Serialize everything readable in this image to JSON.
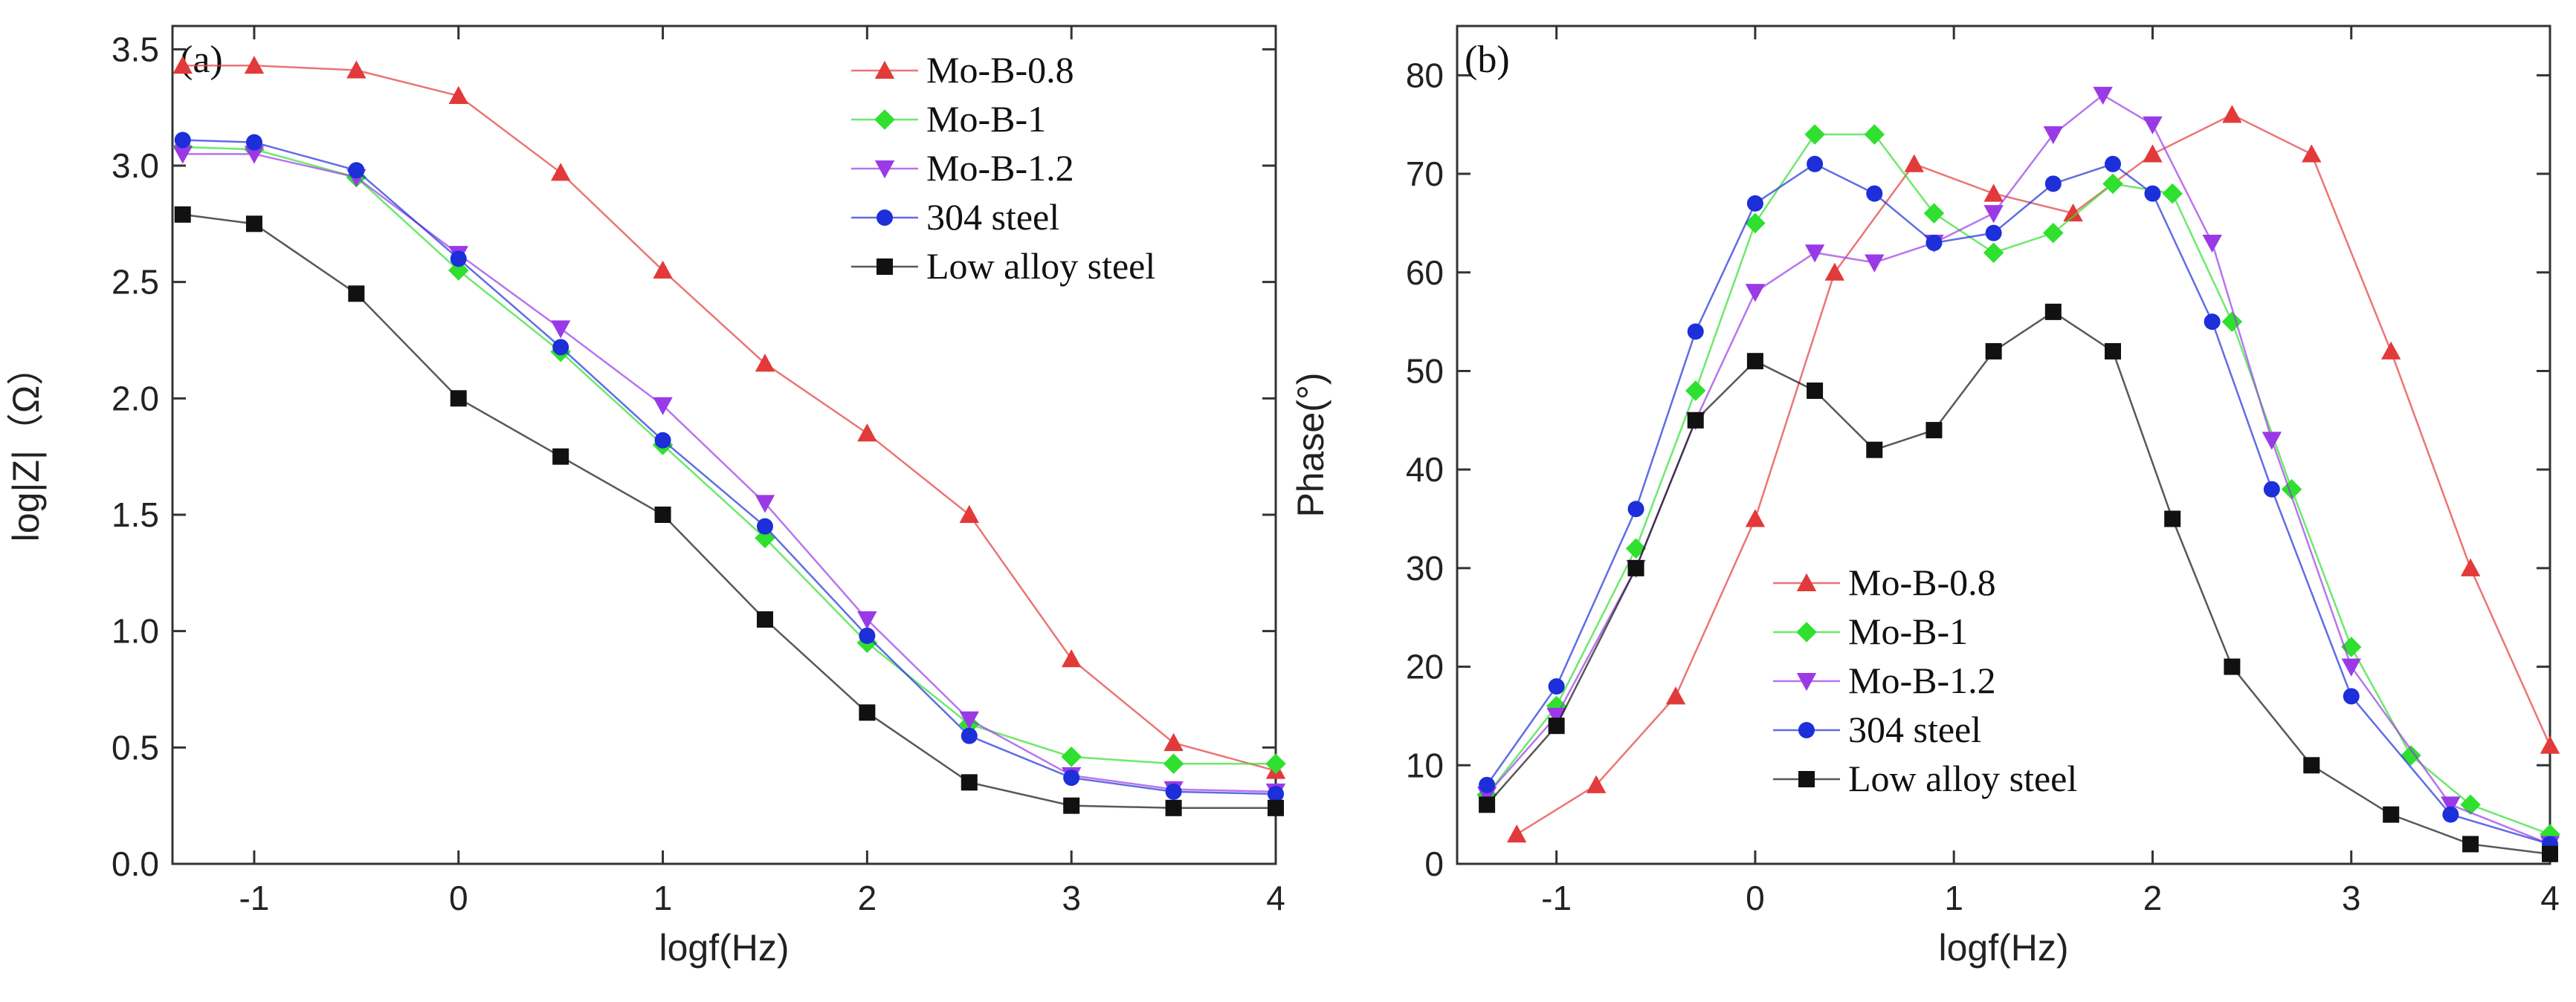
{
  "chart_data": [
    {
      "type": "line",
      "panel_label": "(a)",
      "xlabel": "logf(Hz)",
      "ylabel": "log|Z|（Ω）",
      "xlim": [
        -1.4,
        4.0
      ],
      "ylim": [
        0.0,
        3.6
      ],
      "xticks": [
        -1,
        0,
        1,
        2,
        3,
        4
      ],
      "yticks": [
        0.0,
        0.5,
        1.0,
        1.5,
        2.0,
        2.5,
        3.0,
        3.5
      ],
      "legend_position": "top-right",
      "series": [
        {
          "name": "Mo-B-0.8",
          "color": "#e23a3a",
          "marker": "triangle-up",
          "x": [
            -1.35,
            -1.0,
            -0.5,
            0,
            0.5,
            1.0,
            1.5,
            2.0,
            2.5,
            3.0,
            3.5,
            4.0
          ],
          "y": [
            3.43,
            3.43,
            3.41,
            3.3,
            2.97,
            2.55,
            2.15,
            1.85,
            1.5,
            0.88,
            0.52,
            0.4
          ]
        },
        {
          "name": "Mo-B-1",
          "color": "#2fe02f",
          "marker": "diamond",
          "x": [
            -1.35,
            -1.0,
            -0.5,
            0,
            0.5,
            1.0,
            1.5,
            2.0,
            2.5,
            3.0,
            3.5,
            4.0
          ],
          "y": [
            3.08,
            3.07,
            2.95,
            2.55,
            2.2,
            1.8,
            1.4,
            0.95,
            0.6,
            0.46,
            0.43,
            0.43
          ]
        },
        {
          "name": "Mo-B-1.2",
          "color": "#9a3ae6",
          "marker": "triangle-down",
          "x": [
            -1.35,
            -1.0,
            -0.5,
            0,
            0.5,
            1.0,
            1.5,
            2.0,
            2.5,
            3.0,
            3.5,
            4.0
          ],
          "y": [
            3.05,
            3.05,
            2.95,
            2.62,
            2.3,
            1.97,
            1.55,
            1.05,
            0.62,
            0.38,
            0.32,
            0.31
          ]
        },
        {
          "name": "304 steel",
          "color": "#1c2fd8",
          "marker": "circle",
          "x": [
            -1.35,
            -1.0,
            -0.5,
            0,
            0.5,
            1.0,
            1.5,
            2.0,
            2.5,
            3.0,
            3.5,
            4.0
          ],
          "y": [
            3.11,
            3.1,
            2.98,
            2.6,
            2.22,
            1.82,
            1.45,
            0.98,
            0.55,
            0.37,
            0.31,
            0.3
          ]
        },
        {
          "name": "Low alloy steel",
          "color": "#111111",
          "marker": "square",
          "x": [
            -1.35,
            -1.0,
            -0.5,
            0,
            0.5,
            1.0,
            1.5,
            2.0,
            2.5,
            3.0,
            3.5,
            4.0
          ],
          "y": [
            2.79,
            2.75,
            2.45,
            2.0,
            1.75,
            1.5,
            1.05,
            0.65,
            0.35,
            0.25,
            0.24,
            0.24
          ]
        }
      ]
    },
    {
      "type": "line",
      "panel_label": "(b)",
      "xlabel": "logf(Hz)",
      "ylabel": "Phase(°)",
      "xlim": [
        -1.5,
        4.0
      ],
      "ylim": [
        0,
        85
      ],
      "xticks": [
        -1,
        0,
        1,
        2,
        3,
        4
      ],
      "yticks": [
        0,
        10,
        20,
        30,
        40,
        50,
        60,
        70,
        80
      ],
      "legend_position": "bottom-center",
      "series": [
        {
          "name": "Mo-B-0.8",
          "color": "#e23a3a",
          "marker": "triangle-up",
          "x": [
            -1.2,
            -0.8,
            -0.4,
            0,
            0.4,
            0.8,
            1.2,
            1.6,
            2.0,
            2.4,
            2.8,
            3.2,
            3.6,
            4.0
          ],
          "y": [
            3,
            8,
            17,
            35,
            60,
            71,
            68,
            66,
            72,
            76,
            72,
            52,
            30,
            12
          ]
        },
        {
          "name": "Mo-B-1",
          "color": "#2fe02f",
          "marker": "diamond",
          "x": [
            -1.35,
            -1.0,
            -0.6,
            -0.3,
            0,
            0.3,
            0.6,
            0.9,
            1.2,
            1.5,
            1.8,
            2.1,
            2.4,
            2.7,
            3.0,
            3.3,
            3.6,
            4.0
          ],
          "y": [
            7,
            16,
            32,
            48,
            65,
            74,
            74,
            66,
            62,
            64,
            69,
            68,
            55,
            38,
            22,
            11,
            6,
            3
          ]
        },
        {
          "name": "Mo-B-1.2",
          "color": "#9a3ae6",
          "marker": "triangle-down",
          "x": [
            -1.35,
            -1.0,
            -0.6,
            -0.3,
            0,
            0.3,
            0.6,
            0.9,
            1.2,
            1.5,
            1.75,
            2.0,
            2.3,
            2.6,
            3.0,
            3.5,
            4.0
          ],
          "y": [
            7,
            15,
            30,
            45,
            58,
            62,
            61,
            63,
            66,
            74,
            78,
            75,
            63,
            43,
            20,
            6,
            2
          ]
        },
        {
          "name": "304 steel",
          "color": "#1c2fd8",
          "marker": "circle",
          "x": [
            -1.35,
            -1.0,
            -0.6,
            -0.3,
            0,
            0.3,
            0.6,
            0.9,
            1.2,
            1.5,
            1.8,
            2.0,
            2.3,
            2.6,
            3.0,
            3.5,
            4.0
          ],
          "y": [
            8,
            18,
            36,
            54,
            67,
            71,
            68,
            63,
            64,
            69,
            71,
            68,
            55,
            38,
            17,
            5,
            2
          ]
        },
        {
          "name": "Low alloy steel",
          "color": "#111111",
          "marker": "square",
          "x": [
            -1.35,
            -1.0,
            -0.6,
            -0.3,
            0,
            0.3,
            0.6,
            0.9,
            1.2,
            1.5,
            1.8,
            2.1,
            2.4,
            2.8,
            3.2,
            3.6,
            4.0
          ],
          "y": [
            6,
            14,
            30,
            45,
            51,
            48,
            42,
            44,
            52,
            56,
            52,
            35,
            20,
            10,
            5,
            2,
            1
          ]
        }
      ]
    }
  ]
}
